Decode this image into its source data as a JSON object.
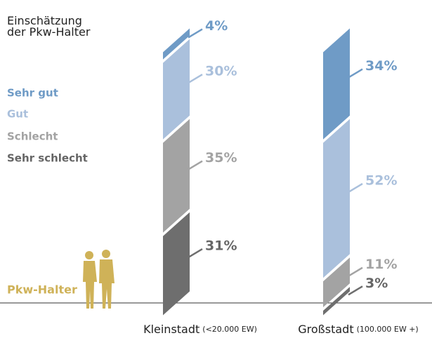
{
  "chart_data": {
    "type": "bar",
    "legend_title": "Einschätzung der Pkw-Halter",
    "categories": [
      "Kleinstadt",
      "Großstadt"
    ],
    "category_notes": [
      "(<20.000 EW)",
      "(100.000 EW +)"
    ],
    "annotation": "Pkw-Halter",
    "series": [
      {
        "name": "Sehr gut",
        "color": "#6f9bc6",
        "values": [
          4,
          34
        ],
        "value_labels": [
          "4%",
          "34%"
        ]
      },
      {
        "name": "Gut",
        "color": "#aac0dc",
        "values": [
          30,
          52
        ],
        "value_labels": [
          "30%",
          "52%"
        ]
      },
      {
        "name": "Schlecht",
        "color": "#a3a3a3",
        "values": [
          35,
          11
        ],
        "value_labels": [
          "35%",
          "11%"
        ]
      },
      {
        "name": "Sehr schlecht",
        "color": "#6e6e6e",
        "values": [
          31,
          3
        ],
        "value_labels": [
          "31%",
          "3%"
        ]
      }
    ],
    "ylim": [
      0,
      100
    ]
  }
}
